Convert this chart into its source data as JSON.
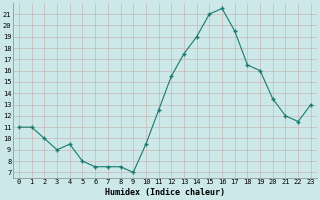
{
  "x": [
    0,
    1,
    2,
    3,
    4,
    5,
    6,
    7,
    8,
    9,
    10,
    11,
    12,
    13,
    14,
    15,
    16,
    17,
    18,
    19,
    20,
    21,
    22,
    23
  ],
  "y": [
    11,
    11,
    10,
    9,
    9.5,
    8,
    7.5,
    7.5,
    7.5,
    7,
    9.5,
    12.5,
    15.5,
    17.5,
    19,
    21,
    21.5,
    19.5,
    16.5,
    16,
    13.5,
    12,
    11.5,
    13
  ],
  "line_color": "#1a7a6e",
  "marker_color": "#1a7a6e",
  "bg_color": "#cce8e8",
  "grid_color": "#c8b8b8",
  "xlabel": "Humidex (Indice chaleur)",
  "ylim_min": 6.5,
  "ylim_max": 22,
  "xlim_min": -0.5,
  "xlim_max": 23.5,
  "yticks": [
    7,
    8,
    9,
    10,
    11,
    12,
    13,
    14,
    15,
    16,
    17,
    18,
    19,
    20,
    21
  ],
  "xtick_labels": [
    "0",
    "1",
    "2",
    "3",
    "4",
    "5",
    "6",
    "7",
    "8",
    "9",
    "10",
    "11",
    "12",
    "13",
    "14",
    "15",
    "16",
    "17",
    "18",
    "19",
    "20",
    "21",
    "22",
    "23"
  ],
  "axis_fontsize": 5.5,
  "tick_fontsize": 5.0,
  "xlabel_fontsize": 6.0
}
